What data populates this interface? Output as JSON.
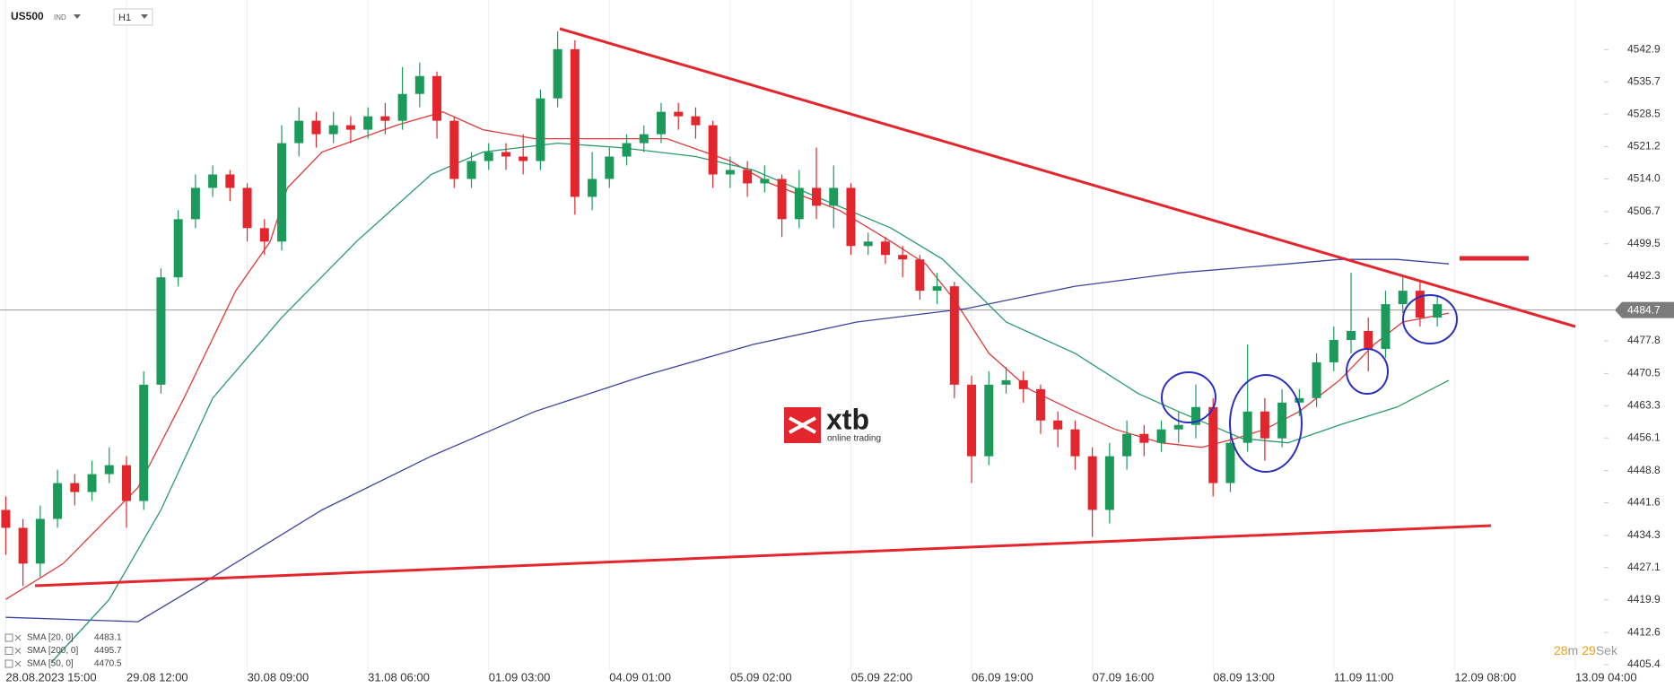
{
  "header": {
    "symbol": "US500",
    "market": "IND",
    "interval": "H1"
  },
  "chart_data": {
    "type": "candlestick",
    "x": [
      0,
      3,
      6,
      9,
      12,
      15,
      18,
      21,
      24,
      27,
      30,
      33,
      36,
      39,
      42,
      45,
      48,
      51,
      54,
      57,
      60,
      63,
      66,
      69,
      72,
      75,
      78,
      81,
      84,
      87,
      90,
      93,
      96,
      99,
      102,
      105,
      108,
      111,
      114,
      117,
      120,
      123,
      126,
      129,
      132,
      135,
      138,
      141,
      144,
      147,
      150,
      153,
      156,
      159,
      162,
      165,
      168,
      171,
      174,
      177,
      180,
      183,
      186,
      189,
      192,
      195,
      198,
      201,
      204,
      207,
      210,
      213,
      216,
      219,
      222,
      225,
      228,
      231,
      234,
      237,
      240,
      243,
      246,
      249
    ],
    "open": [
      4440,
      4436,
      4428,
      4438,
      4446,
      4444,
      4448,
      4450,
      4442,
      4468,
      4492,
      4505,
      4512,
      4515,
      4512,
      4503,
      4500,
      4522,
      4527,
      4524,
      4526,
      4525,
      4528,
      4527,
      4533,
      4537,
      4527,
      4514,
      4518,
      4520,
      4519,
      4518,
      4532,
      4543,
      4510,
      4514,
      4519,
      4522,
      4524,
      4529,
      4528,
      4526,
      4515,
      4516,
      4513,
      4514,
      4505,
      4512,
      4508,
      4512,
      4499,
      4500,
      4497,
      4496,
      4489,
      4490,
      4468,
      4452,
      4468,
      4469,
      4467,
      4460,
      4458,
      4452,
      4440,
      4452,
      4457,
      4455,
      4458,
      4459,
      4463,
      4446,
      4455,
      4462,
      4456,
      4464,
      4465,
      4473,
      4478,
      4480,
      4476,
      4486,
      4489,
      4483
    ],
    "high": [
      4443,
      4438,
      4441,
      4449,
      4448,
      4451,
      4454,
      4452,
      4471,
      4494,
      4507,
      4515,
      4517,
      4516,
      4513,
      4505,
      4526,
      4530,
      4529,
      4529,
      4528,
      4530,
      4531,
      4539,
      4540,
      4538,
      4528,
      4520,
      4522,
      4522,
      4524,
      4534,
      4547,
      4545,
      4520,
      4521,
      4524,
      4526,
      4531,
      4531,
      4530,
      4527,
      4519,
      4518,
      4517,
      4515,
      4516,
      4521,
      4517,
      4513,
      4502,
      4501,
      4499,
      4497,
      4493,
      4491,
      4470,
      4471,
      4472,
      4471,
      4468,
      4462,
      4460,
      4454,
      4455,
      4460,
      4459,
      4460,
      4462,
      4468,
      4465,
      4458,
      4477,
      4465,
      4467,
      4467,
      4475,
      4481,
      4493,
      4483,
      4489,
      4492,
      4491,
      4488
    ],
    "low": [
      4430,
      4423,
      4425,
      4436,
      4441,
      4442,
      4446,
      4436,
      4440,
      4466,
      4490,
      4503,
      4510,
      4509,
      4500,
      4497,
      4498,
      4519,
      4521,
      4522,
      4522,
      4523,
      4524,
      4525,
      4530,
      4523,
      4512,
      4512,
      4516,
      4516,
      4515,
      4516,
      4530,
      4506,
      4507,
      4512,
      4517,
      4520,
      4522,
      4525,
      4523,
      4512,
      4512,
      4510,
      4511,
      4501,
      4503,
      4505,
      4503,
      4497,
      4497,
      4495,
      4492,
      4487,
      4486,
      4465,
      4446,
      4450,
      4466,
      4464,
      4457,
      4454,
      4449,
      4434,
      4437,
      4449,
      4452,
      4453,
      4455,
      4456,
      4443,
      4444,
      4453,
      4451,
      4454,
      4461,
      4463,
      4471,
      4475,
      4471,
      4474,
      4484,
      4481,
      4481
    ],
    "close": [
      4436,
      4428,
      4438,
      4446,
      4444,
      4448,
      4450,
      4442,
      4468,
      4492,
      4505,
      4512,
      4515,
      4512,
      4503,
      4500,
      4522,
      4527,
      4524,
      4526,
      4525,
      4528,
      4527,
      4533,
      4537,
      4527,
      4514,
      4518,
      4520,
      4519,
      4518,
      4532,
      4543,
      4510,
      4514,
      4519,
      4522,
      4524,
      4529,
      4528,
      4526,
      4515,
      4516,
      4513,
      4514,
      4505,
      4512,
      4508,
      4512,
      4499,
      4500,
      4497,
      4496,
      4489,
      4490,
      4468,
      4452,
      4468,
      4469,
      4467,
      4460,
      4458,
      4452,
      4440,
      4452,
      4457,
      4455,
      4458,
      4459,
      4463,
      4446,
      4455,
      4462,
      4456,
      4464,
      4465,
      4473,
      4478,
      4480,
      4476,
      4486,
      4489,
      4483,
      4486
    ],
    "up_color": "#1c9a5c",
    "down_color": "#e3262d",
    "xlim": [
      -1,
      278
    ],
    "xticks": [
      {
        "value": 0,
        "label": "28.08.2023 15:00"
      },
      {
        "value": 21,
        "label": "29.08 12:00"
      },
      {
        "value": 42,
        "label": "30.08 09:00"
      },
      {
        "value": 63,
        "label": "31.08 06:00"
      },
      {
        "value": 84,
        "label": "01.09 03:00"
      },
      {
        "value": 105,
        "label": "04.09 01:00"
      },
      {
        "value": 126,
        "label": "05.09 02:00"
      },
      {
        "value": 147,
        "label": "05.09 22:00"
      },
      {
        "value": 168,
        "label": "06.09 19:00"
      },
      {
        "value": 189,
        "label": "07.09 16:00"
      },
      {
        "value": 210,
        "label": "08.09 13:00"
      },
      {
        "value": 231,
        "label": "11.09 11:00"
      },
      {
        "value": 252,
        "label": "12.09 08:00"
      },
      {
        "value": 273,
        "label": "13.09 04:00"
      }
    ],
    "ylim": [
      4404,
      4554
    ],
    "yticks": [
      4542.9,
      4535.7,
      4528.5,
      4521.2,
      {
        "value": 4514,
        "label": "4514.0"
      },
      4506.7,
      4499.5,
      4492.3,
      4477.8,
      4470.5,
      4463.3,
      4456.1,
      4448.8,
      4441.6,
      4434.3,
      4427.1,
      4419.9,
      4412.6,
      4405.4
    ],
    "grid": "x",
    "last_price": 4484.7,
    "lines": [
      {
        "name": "SMA [20, 0]",
        "color": "#e03a3a",
        "last_value": 4483.1,
        "x": [
          0,
          10,
          23,
          31,
          40,
          46,
          49,
          55,
          68,
          76,
          83,
          92,
          104,
          115,
          126,
          133,
          145,
          154,
          160,
          165,
          171,
          178,
          186,
          193,
          201,
          208,
          214,
          219,
          225,
          232,
          238,
          243,
          251
        ],
        "values": [
          4420,
          4428,
          4445,
          4465,
          4489,
          4500,
          4512,
          4520,
          4526,
          4529,
          4525,
          4523,
          4523,
          4523,
          4518,
          4513,
          4507,
          4500,
          4495,
          4487,
          4475,
          4467,
          4462,
          4458,
          4455,
          4454,
          4456,
          4458,
          4462,
          4469,
          4477,
          4482,
          4484
        ]
      },
      {
        "name": "SMA [200, 0]",
        "color": "#3a45a0",
        "last_value": 4495.7,
        "x": [
          0,
          23,
          36,
          55,
          74,
          92,
          111,
          130,
          148,
          167,
          186,
          204,
          223,
          232,
          242,
          251
        ],
        "values": [
          4416,
          4415,
          4425,
          4440,
          4452,
          4462,
          4470,
          4477,
          4482,
          4485,
          4490,
          4493,
          4495,
          4496,
          4496,
          4495
        ]
      },
      {
        "name": "SMA [50, 0]",
        "color": "#2a9a6a",
        "last_value": 4470.5,
        "x": [
          8,
          18,
          27,
          36,
          48,
          61,
          74,
          83,
          96,
          107,
          120,
          130,
          141,
          154,
          163,
          174,
          186,
          197,
          204,
          215,
          223,
          232,
          242,
          251
        ],
        "values": [
          4406,
          4420,
          4440,
          4465,
          4483,
          4500,
          4515,
          4520,
          4522,
          4521,
          4519,
          4516,
          4510,
          4503,
          4496,
          4482,
          4475,
          4466,
          4462,
          4456,
          4455,
          4459,
          4463,
          4469
        ]
      }
    ]
  },
  "logo": {
    "brand": "xtb",
    "tagline": "online trading"
  },
  "countdown": {
    "minutes": 28,
    "minutes_unit": "m",
    "seconds": 29,
    "seconds_unit": "Sek"
  }
}
